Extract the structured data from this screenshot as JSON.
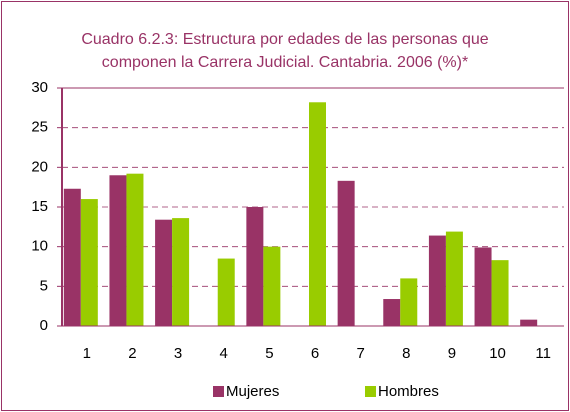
{
  "chart_data": {
    "type": "bar",
    "title": "Cuadro 6.2.3: Estructura por edades de las personas que componen la Carrera Judicial. Cantabria. 2006 (%)*",
    "categories": [
      "1",
      "2",
      "3",
      "4",
      "5",
      "6",
      "7",
      "8",
      "9",
      "10",
      "11"
    ],
    "series": [
      {
        "name": "Mujeres",
        "color": "#993366",
        "values": [
          17.3,
          19,
          13.4,
          0,
          15,
          0,
          18.3,
          3.4,
          11.4,
          9.9,
          0.8
        ]
      },
      {
        "name": "Hombres",
        "color": "#99cc00",
        "values": [
          16,
          19.2,
          13.6,
          8.5,
          10,
          28.2,
          0,
          6,
          11.9,
          8.3,
          0
        ]
      }
    ],
    "ylim": [
      0,
      30
    ],
    "yticks": [
      0,
      5,
      10,
      15,
      20,
      25,
      30
    ],
    "grid": true,
    "legend": "bottom"
  }
}
